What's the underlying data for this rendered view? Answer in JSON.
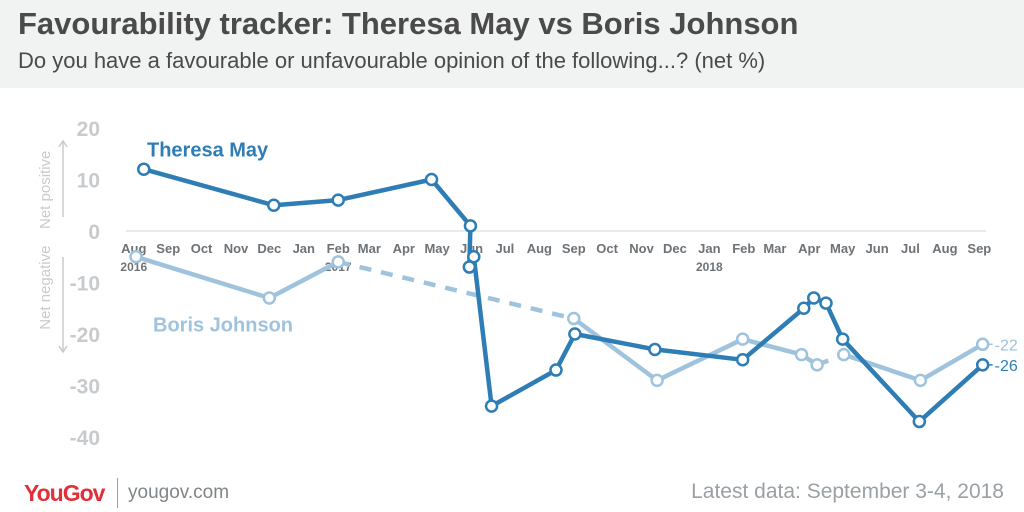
{
  "header": {
    "title": "Favourability tracker: Theresa May vs Boris Johnson",
    "subtitle": "Do you have a favourable or unfavourable opinion of the following...? (net %)"
  },
  "footer": {
    "logo": "YouGov",
    "site": "yougov.com",
    "latest": "Latest data: September 3-4, 2018"
  },
  "colors": {
    "may": "#2e7db5",
    "johnson": "#9fc3dd",
    "axis_text": "#c8cbcd",
    "month_text": "#6d7276"
  },
  "chart_data": {
    "type": "line",
    "ylim": [
      -40,
      20
    ],
    "y_ticks": [
      20,
      10,
      0,
      -10,
      -20,
      -30,
      -40
    ],
    "y_axis_labels": {
      "positive": "Net positive",
      "negative": "Net negative"
    },
    "x_range": [
      "2016-07-25",
      "2018-09-07"
    ],
    "x_ticks": [
      {
        "label": "Aug",
        "date": "2016-08-01",
        "year": "2016"
      },
      {
        "label": "Sep",
        "date": "2016-09-01"
      },
      {
        "label": "Oct",
        "date": "2016-10-01"
      },
      {
        "label": "Nov",
        "date": "2016-11-01"
      },
      {
        "label": "Dec",
        "date": "2016-12-01"
      },
      {
        "label": "Jan",
        "date": "2017-01-01"
      },
      {
        "label": "Feb",
        "date": "2017-02-01",
        "year": "2017"
      },
      {
        "label": "Mar",
        "date": "2017-03-01"
      },
      {
        "label": "Apr",
        "date": "2017-04-01"
      },
      {
        "label": "May",
        "date": "2017-05-01"
      },
      {
        "label": "Jun",
        "date": "2017-06-01"
      },
      {
        "label": "Jul",
        "date": "2017-07-01"
      },
      {
        "label": "Aug",
        "date": "2017-08-01"
      },
      {
        "label": "Sep",
        "date": "2017-09-01"
      },
      {
        "label": "Oct",
        "date": "2017-10-01"
      },
      {
        "label": "Nov",
        "date": "2017-11-01"
      },
      {
        "label": "Dec",
        "date": "2017-12-01"
      },
      {
        "label": "Jan",
        "date": "2018-01-01",
        "year": "2018"
      },
      {
        "label": "Feb",
        "date": "2018-02-01"
      },
      {
        "label": "Mar",
        "date": "2018-03-01"
      },
      {
        "label": "Apr",
        "date": "2018-04-01"
      },
      {
        "label": "May",
        "date": "2018-05-01"
      },
      {
        "label": "Jun",
        "date": "2018-06-01"
      },
      {
        "label": "Jul",
        "date": "2018-07-01"
      },
      {
        "label": "Aug",
        "date": "2018-08-01"
      },
      {
        "label": "Sep",
        "date": "2018-09-01"
      }
    ],
    "series": [
      {
        "name": "Theresa May",
        "color": "#2e7db5",
        "end_label": "-26",
        "points": [
          {
            "date": "2016-08-10",
            "y": 12
          },
          {
            "date": "2016-12-05",
            "y": 5
          },
          {
            "date": "2017-02-01",
            "y": 6
          },
          {
            "date": "2017-04-26",
            "y": 10
          },
          {
            "date": "2017-05-31",
            "y": 1
          },
          {
            "date": "2017-05-30",
            "y": -7
          },
          {
            "date": "2017-06-03",
            "y": -5
          },
          {
            "date": "2017-06-19",
            "y": -34
          },
          {
            "date": "2017-08-16",
            "y": -27
          },
          {
            "date": "2017-09-02",
            "y": -20
          },
          {
            "date": "2017-11-13",
            "y": -23
          },
          {
            "date": "2018-01-31",
            "y": -25
          },
          {
            "date": "2018-03-27",
            "y": -15
          },
          {
            "date": "2018-04-05",
            "y": -13
          },
          {
            "date": "2018-04-16",
            "y": -14
          },
          {
            "date": "2018-05-01",
            "y": -21
          },
          {
            "date": "2018-07-09",
            "y": -37
          },
          {
            "date": "2018-09-04",
            "y": -26
          }
        ],
        "segments": [
          {
            "from": 0,
            "to": 17,
            "dashed": false
          }
        ]
      },
      {
        "name": "Boris Johnson",
        "color": "#9fc3dd",
        "end_label": "-22",
        "points": [
          {
            "date": "2016-08-03",
            "y": -5
          },
          {
            "date": "2016-12-01",
            "y": -13
          },
          {
            "date": "2017-02-01",
            "y": -6
          },
          {
            "date": "2017-09-01",
            "y": -17
          },
          {
            "date": "2017-11-15",
            "y": -29
          },
          {
            "date": "2018-01-31",
            "y": -21
          },
          {
            "date": "2018-03-25",
            "y": -24
          },
          {
            "date": "2018-04-08",
            "y": -26
          },
          {
            "date": "2018-05-02",
            "y": -24
          },
          {
            "date": "2018-07-10",
            "y": -29
          },
          {
            "date": "2018-09-04",
            "y": -22
          }
        ],
        "segments": [
          {
            "from": 0,
            "to": 2,
            "dashed": false
          },
          {
            "from": 2,
            "to": 3,
            "dashed": true
          },
          {
            "from": 3,
            "to": 7,
            "dashed": false
          },
          {
            "from": 7,
            "to": 8,
            "dashed": true
          },
          {
            "from": 8,
            "to": 10,
            "dashed": false
          }
        ]
      }
    ]
  }
}
